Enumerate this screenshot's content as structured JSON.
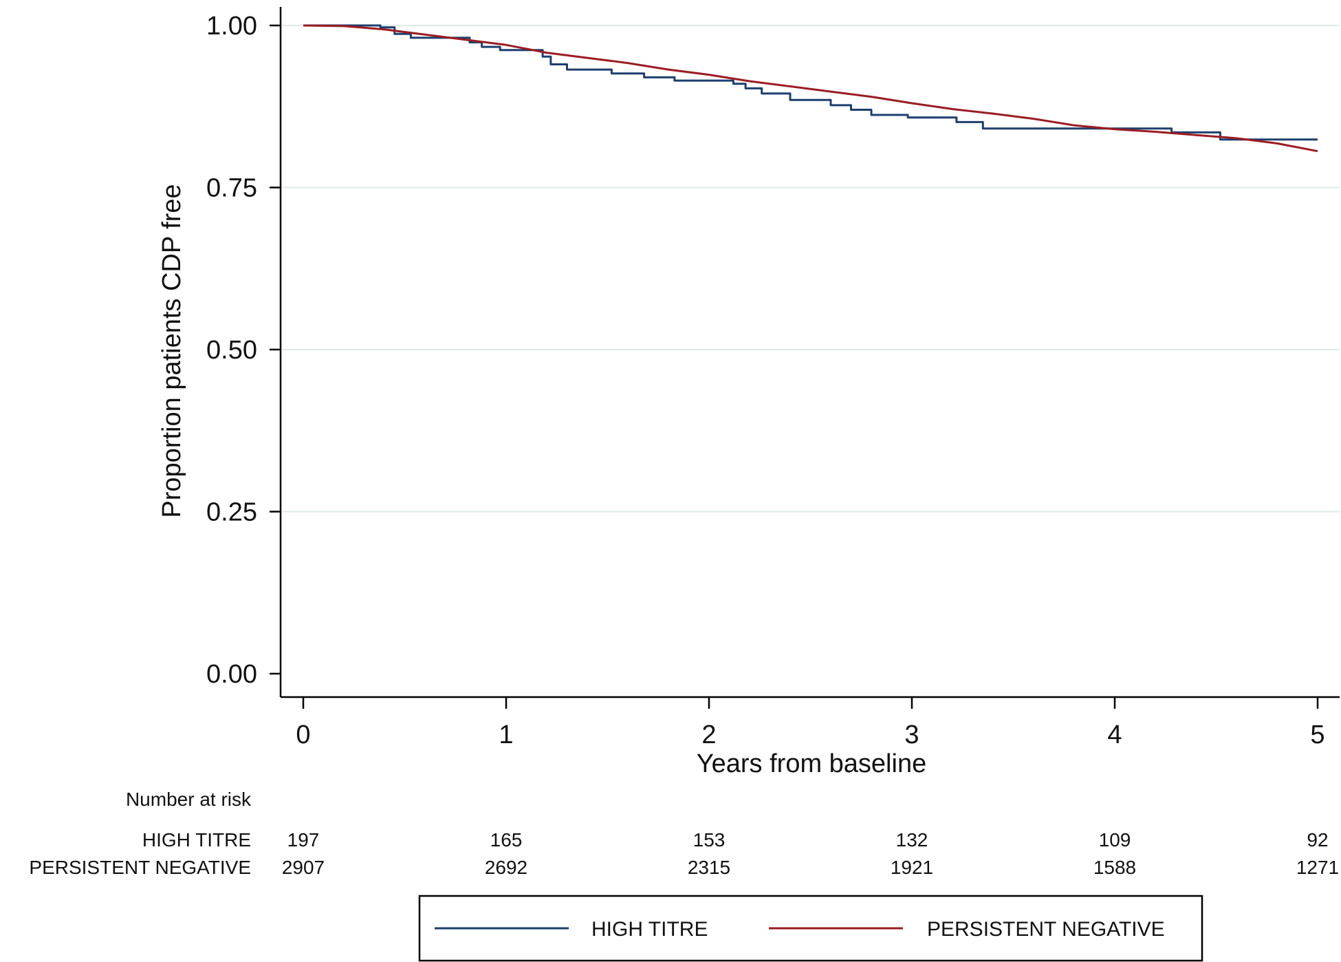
{
  "chart_data": {
    "type": "line",
    "title": "",
    "xlabel": "Years from baseline",
    "ylabel": "Proportion patients CDP free",
    "xlim": [
      0,
      5
    ],
    "ylim": [
      0,
      1
    ],
    "x_ticks": [
      {
        "value": 0,
        "label": "0"
      },
      {
        "value": 1,
        "label": "1"
      },
      {
        "value": 2,
        "label": "2"
      },
      {
        "value": 3,
        "label": "3"
      },
      {
        "value": 4,
        "label": "4"
      },
      {
        "value": 5,
        "label": "5"
      }
    ],
    "y_ticks": [
      {
        "value": 0,
        "label": "0.00"
      },
      {
        "value": 0.25,
        "label": "0.25"
      },
      {
        "value": 0.5,
        "label": "0.50"
      },
      {
        "value": 0.75,
        "label": "0.75"
      },
      {
        "value": 1,
        "label": "1.00"
      }
    ],
    "grid": true,
    "legend_position": "bottom",
    "series": [
      {
        "name": "HIGH TITRE",
        "color": "#1c3f6e",
        "step": true,
        "points": [
          [
            0,
            1.0
          ],
          [
            0.38,
            1.0
          ],
          [
            0.38,
            0.997
          ],
          [
            0.45,
            0.997
          ],
          [
            0.45,
            0.987
          ],
          [
            0.53,
            0.987
          ],
          [
            0.53,
            0.981
          ],
          [
            0.82,
            0.981
          ],
          [
            0.82,
            0.974
          ],
          [
            0.88,
            0.974
          ],
          [
            0.88,
            0.967
          ],
          [
            0.97,
            0.967
          ],
          [
            0.97,
            0.962
          ],
          [
            1.18,
            0.962
          ],
          [
            1.18,
            0.952
          ],
          [
            1.22,
            0.952
          ],
          [
            1.22,
            0.94
          ],
          [
            1.3,
            0.94
          ],
          [
            1.3,
            0.932
          ],
          [
            1.52,
            0.932
          ],
          [
            1.52,
            0.926
          ],
          [
            1.68,
            0.926
          ],
          [
            1.68,
            0.92
          ],
          [
            1.83,
            0.92
          ],
          [
            1.83,
            0.915
          ],
          [
            2.12,
            0.915
          ],
          [
            2.12,
            0.91
          ],
          [
            2.18,
            0.91
          ],
          [
            2.18,
            0.903
          ],
          [
            2.26,
            0.903
          ],
          [
            2.26,
            0.895
          ],
          [
            2.4,
            0.895
          ],
          [
            2.4,
            0.885
          ],
          [
            2.6,
            0.885
          ],
          [
            2.6,
            0.877
          ],
          [
            2.7,
            0.877
          ],
          [
            2.7,
            0.87
          ],
          [
            2.8,
            0.87
          ],
          [
            2.8,
            0.862
          ],
          [
            2.98,
            0.862
          ],
          [
            2.98,
            0.858
          ],
          [
            3.22,
            0.858
          ],
          [
            3.22,
            0.851
          ],
          [
            3.35,
            0.851
          ],
          [
            3.35,
            0.841
          ],
          [
            4.28,
            0.841
          ],
          [
            4.28,
            0.835
          ],
          [
            4.52,
            0.835
          ],
          [
            4.52,
            0.824
          ],
          [
            5.0,
            0.824
          ]
        ]
      },
      {
        "name": "PERSISTENT NEGATIVE",
        "color": "#9b1c22",
        "step": false,
        "points": [
          [
            0,
            1.0
          ],
          [
            0.2,
            0.999
          ],
          [
            0.4,
            0.994
          ],
          [
            0.6,
            0.986
          ],
          [
            0.8,
            0.978
          ],
          [
            1.0,
            0.97
          ],
          [
            1.2,
            0.958
          ],
          [
            1.4,
            0.95
          ],
          [
            1.6,
            0.942
          ],
          [
            1.8,
            0.932
          ],
          [
            2.0,
            0.924
          ],
          [
            2.2,
            0.914
          ],
          [
            2.4,
            0.906
          ],
          [
            2.6,
            0.898
          ],
          [
            2.8,
            0.89
          ],
          [
            3.0,
            0.88
          ],
          [
            3.2,
            0.871
          ],
          [
            3.4,
            0.864
          ],
          [
            3.6,
            0.856
          ],
          [
            3.8,
            0.846
          ],
          [
            4.0,
            0.84
          ],
          [
            4.2,
            0.836
          ],
          [
            4.4,
            0.831
          ],
          [
            4.6,
            0.826
          ],
          [
            4.8,
            0.818
          ],
          [
            5.0,
            0.806
          ]
        ]
      }
    ],
    "number_at_risk": {
      "title": "Number at risk",
      "rows": [
        {
          "label": "HIGH TITRE",
          "values": [
            {
              "x": 0,
              "text": "197"
            },
            {
              "x": 1,
              "text": "165"
            },
            {
              "x": 2,
              "text": "153"
            },
            {
              "x": 3,
              "text": "132"
            },
            {
              "x": 4,
              "text": "109"
            },
            {
              "x": 5,
              "text": "92"
            }
          ]
        },
        {
          "label": "PERSISTENT NEGATIVE",
          "values": [
            {
              "x": 0,
              "text": "2907"
            },
            {
              "x": 1,
              "text": "2692"
            },
            {
              "x": 2,
              "text": "2315"
            },
            {
              "x": 3,
              "text": "1921"
            },
            {
              "x": 4,
              "text": "1588"
            },
            {
              "x": 5,
              "text": "1271"
            }
          ]
        }
      ]
    },
    "legend": [
      {
        "label": "HIGH TITRE",
        "color": "#1c3f6e"
      },
      {
        "label": "PERSISTENT NEGATIVE",
        "color": "#9b1c22"
      }
    ]
  }
}
